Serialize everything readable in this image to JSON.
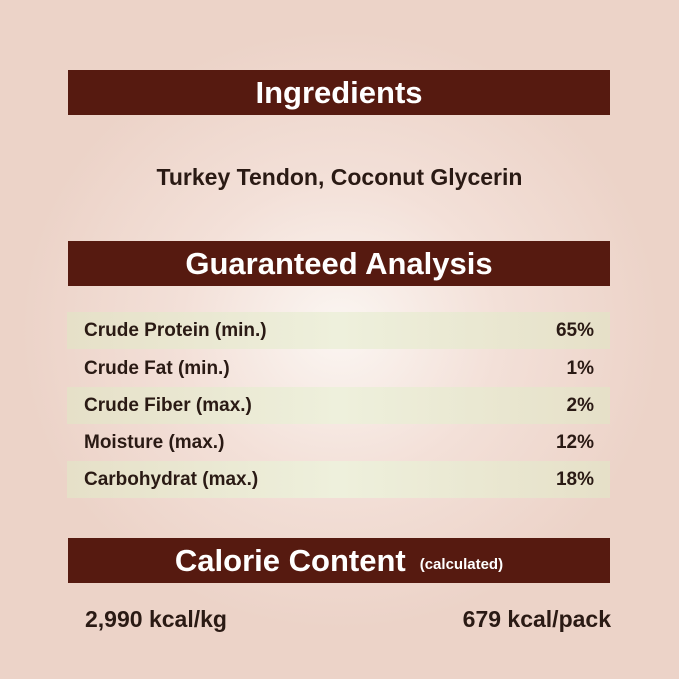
{
  "ingredients": {
    "heading": "Ingredients",
    "text": "Turkey Tendon, Coconut Glycerin"
  },
  "analysis": {
    "heading": "Guaranteed Analysis",
    "rows": [
      {
        "label": "Crude Protein (min.)",
        "value": "65%"
      },
      {
        "label": "Crude Fat (min.)",
        "value": "1%"
      },
      {
        "label": "Crude Fiber (max.)",
        "value": "2%"
      },
      {
        "label": "Moisture (max.)",
        "value": "12%"
      },
      {
        "label": "Carbohydrat (max.)",
        "value": "18%"
      }
    ]
  },
  "calorie": {
    "heading": "Calorie Content",
    "note": "(calculated)",
    "per_kg": "2,990 kcal/kg",
    "per_pack": "679 kcal/pack"
  },
  "colors": {
    "header_bar": "#561a10",
    "row_shade": "#e9e6cf"
  }
}
